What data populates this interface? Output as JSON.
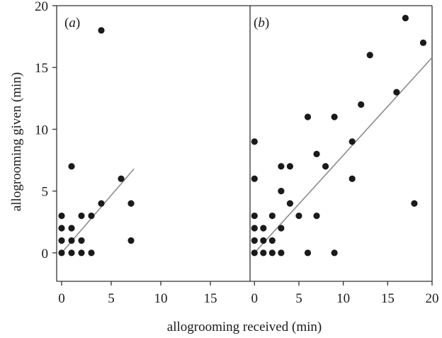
{
  "chart_data": {
    "type": "scatter",
    "xlabel": "allogrooming received (min)",
    "ylabel": "allogrooming given (min)",
    "ylim": [
      -2.3,
      20
    ],
    "yticks": [
      "0",
      "5",
      "10",
      "15",
      "20"
    ],
    "grid": false,
    "legend": "none",
    "colors": {
      "point": "#1a1a1a",
      "fit_line": "#8c8c8c",
      "axis": "#333333"
    },
    "panels": [
      {
        "label_open": "(",
        "label_letter": "a",
        "label_close": ")",
        "xlim": [
          -0.5,
          19
        ],
        "xticks": [
          "0",
          "5",
          "10",
          "15"
        ],
        "points": [
          {
            "x": 0,
            "y": 0
          },
          {
            "x": 0,
            "y": 1
          },
          {
            "x": 0,
            "y": 2
          },
          {
            "x": 0,
            "y": 3
          },
          {
            "x": 1,
            "y": 0
          },
          {
            "x": 1,
            "y": 1
          },
          {
            "x": 1,
            "y": 2
          },
          {
            "x": 1,
            "y": 7
          },
          {
            "x": 2,
            "y": 0
          },
          {
            "x": 2,
            "y": 1
          },
          {
            "x": 2,
            "y": 3
          },
          {
            "x": 3,
            "y": 0
          },
          {
            "x": 3,
            "y": 3
          },
          {
            "x": 4,
            "y": 4
          },
          {
            "x": 4,
            "y": 18
          },
          {
            "x": 6,
            "y": 6
          },
          {
            "x": 7,
            "y": 4
          },
          {
            "x": 7,
            "y": 1
          }
        ],
        "fit_line": {
          "x": [
            0,
            7.3
          ],
          "y": [
            0,
            6.8
          ]
        }
      },
      {
        "label_open": "(",
        "label_letter": "b",
        "label_close": ")",
        "xlim": [
          -0.5,
          20
        ],
        "xticks": [
          "0",
          "5",
          "10",
          "15",
          "20"
        ],
        "points": [
          {
            "x": 0,
            "y": 0
          },
          {
            "x": 0,
            "y": 1
          },
          {
            "x": 0,
            "y": 2
          },
          {
            "x": 0,
            "y": 3
          },
          {
            "x": 0,
            "y": 6
          },
          {
            "x": 0,
            "y": 9
          },
          {
            "x": 1,
            "y": 0
          },
          {
            "x": 1,
            "y": 1
          },
          {
            "x": 1,
            "y": 2
          },
          {
            "x": 2,
            "y": 0
          },
          {
            "x": 2,
            "y": 1
          },
          {
            "x": 2,
            "y": 3
          },
          {
            "x": 3,
            "y": 0
          },
          {
            "x": 3,
            "y": 2
          },
          {
            "x": 3,
            "y": 5
          },
          {
            "x": 3,
            "y": 7
          },
          {
            "x": 4,
            "y": 4
          },
          {
            "x": 4,
            "y": 7
          },
          {
            "x": 5,
            "y": 3
          },
          {
            "x": 6,
            "y": 0
          },
          {
            "x": 6,
            "y": 11
          },
          {
            "x": 7,
            "y": 3
          },
          {
            "x": 7,
            "y": 8
          },
          {
            "x": 8,
            "y": 7
          },
          {
            "x": 9,
            "y": 0
          },
          {
            "x": 9,
            "y": 11
          },
          {
            "x": 11,
            "y": 9
          },
          {
            "x": 11,
            "y": 6
          },
          {
            "x": 12,
            "y": 12
          },
          {
            "x": 13,
            "y": 16
          },
          {
            "x": 16,
            "y": 13
          },
          {
            "x": 17,
            "y": 19
          },
          {
            "x": 18,
            "y": 4
          },
          {
            "x": 19,
            "y": 17
          }
        ],
        "fit_line": {
          "x": [
            0,
            20
          ],
          "y": [
            0,
            15.8
          ]
        }
      }
    ]
  }
}
